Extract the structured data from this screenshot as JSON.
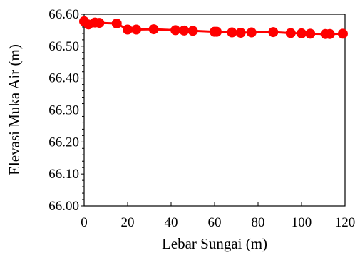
{
  "chart_data": {
    "type": "line",
    "title": "",
    "xlabel": "Lebar Sungai (m)",
    "ylabel": "Elevasi Muka Air (m)",
    "xlim": [
      0,
      120
    ],
    "ylim": [
      66.0,
      66.6
    ],
    "x_ticks": [
      "0",
      "20",
      "40",
      "60",
      "80",
      "100",
      "120"
    ],
    "y_ticks": [
      "66.00",
      "66.10",
      "66.20",
      "66.30",
      "66.40",
      "66.50",
      "66.60"
    ],
    "grid": false,
    "legend": "none",
    "series": [
      {
        "color": "#ff0000",
        "marker": "circle",
        "points": [
          {
            "x": 0,
            "y": 66.578
          },
          {
            "x": 2,
            "y": 66.568
          },
          {
            "x": 5,
            "y": 66.574
          },
          {
            "x": 7,
            "y": 66.573
          },
          {
            "x": 15,
            "y": 66.571
          },
          {
            "x": 20,
            "y": 66.552
          },
          {
            "x": 24,
            "y": 66.552
          },
          {
            "x": 32,
            "y": 66.553
          },
          {
            "x": 42,
            "y": 66.55
          },
          {
            "x": 46,
            "y": 66.549
          },
          {
            "x": 50,
            "y": 66.548
          },
          {
            "x": 60,
            "y": 66.545
          },
          {
            "x": 61,
            "y": 66.545
          },
          {
            "x": 68,
            "y": 66.543
          },
          {
            "x": 72,
            "y": 66.542
          },
          {
            "x": 77,
            "y": 66.543
          },
          {
            "x": 87,
            "y": 66.544
          },
          {
            "x": 95,
            "y": 66.541
          },
          {
            "x": 100,
            "y": 66.54
          },
          {
            "x": 104,
            "y": 66.539
          },
          {
            "x": 111,
            "y": 66.538
          },
          {
            "x": 113,
            "y": 66.538
          },
          {
            "x": 119,
            "y": 66.539
          }
        ]
      }
    ]
  }
}
